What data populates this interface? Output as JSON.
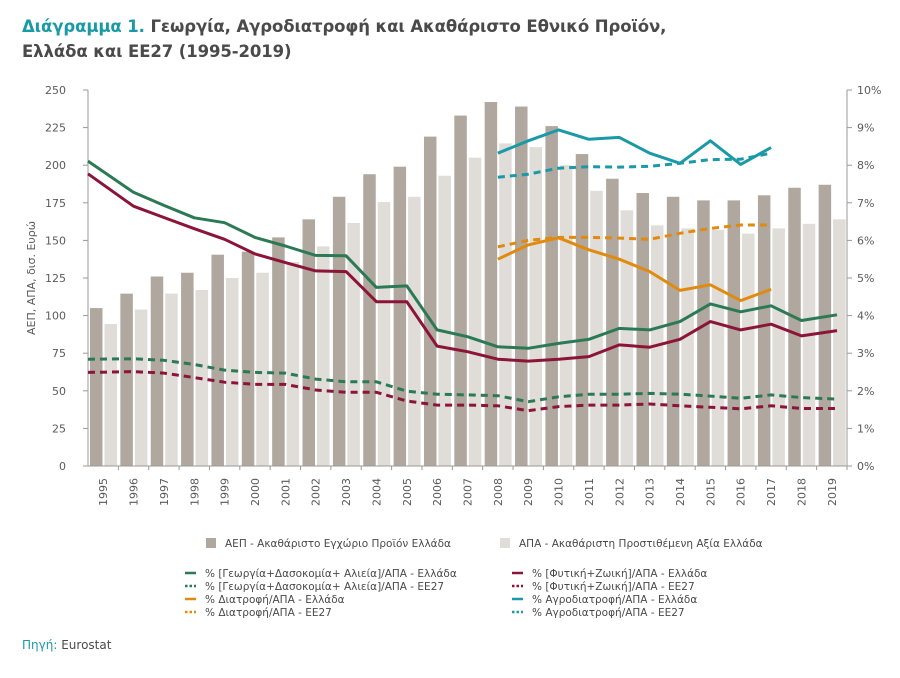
{
  "title": {
    "number": "Διάγραμμα 1.",
    "line1": "Γεωργία, Αγροδιατροφή και Ακαθάριστο Εθνικό Προϊόν,",
    "line2": "Ελλάδα και ΕΕ27 (1995-2019)"
  },
  "source": {
    "label": "Πηγή:",
    "value": "Eurostat"
  },
  "colors": {
    "title_accent": "#1a9aa6",
    "gdp_bar": "#b0a79e",
    "gva_bar": "#e0dcd8",
    "green": "#2b7a55",
    "red": "#8b1538",
    "orange": "#e08a10",
    "teal": "#1a9aa6"
  },
  "chart_data": {
    "type": "bar+line",
    "title": "Διάγραμμα 1. Γεωργία, Αγροδιατροφή και Ακαθάριστο Εθνικό Προϊόν, Ελλάδα και ΕΕ27 (1995-2019)",
    "categories": [
      "1995",
      "1996",
      "1997",
      "1998",
      "1999",
      "2000",
      "2001",
      "2002",
      "2003",
      "2004",
      "2005",
      "2006",
      "2007",
      "2008",
      "2009",
      "2010",
      "2011",
      "2012",
      "2013",
      "2014",
      "2015",
      "2016",
      "2017",
      "2018",
      "2019"
    ],
    "ylabel": "ΑΕΠ, ΑΠΑ, δισ. Ευρώ",
    "ylim": [
      0,
      250
    ],
    "yticks": [
      "0",
      "25",
      "50",
      "75",
      "100",
      "125",
      "150",
      "175",
      "200",
      "225",
      "250"
    ],
    "y2lim": [
      0,
      10
    ],
    "y2ticks": [
      "0%",
      "1%",
      "2%",
      "3%",
      "4%",
      "5%",
      "6%",
      "7%",
      "8%",
      "9%",
      "10%"
    ],
    "grid": false,
    "legend_position": "bottom",
    "bar_series": [
      {
        "name": "ΑΕΠ - Ακαθάριστο Εγχώριο Προϊόν Ελλάδα",
        "axis": "left",
        "values": [
          105,
          114.6,
          126,
          128.5,
          140.5,
          142.5,
          152,
          164,
          179,
          194,
          199,
          219,
          233,
          242,
          239,
          226,
          207.4,
          191,
          181.5,
          179,
          176.6,
          176.6,
          180,
          185,
          187
        ]
      },
      {
        "name": "ΑΠΑ - Ακαθάριστη Προστιθέμενη Αξία Ελλάδα",
        "axis": "left",
        "values": [
          94.4,
          104,
          114.6,
          117,
          125,
          128.5,
          135.6,
          146,
          161.6,
          175.5,
          179,
          193,
          205,
          214.5,
          212,
          200,
          183,
          170,
          160,
          158,
          157,
          154.5,
          158,
          161,
          164
        ]
      }
    ],
    "line_series": [
      {
        "name": "% [Γεωργία+Δασοκομία+ Αλιεία]/ΑΠΑ - Ελλάδα",
        "axis": "right",
        "style": "solid",
        "color": "#2b7a55",
        "values": [
          8.11,
          7.28,
          6.93,
          6.6,
          6.47,
          6.08,
          5.85,
          5.6,
          5.59,
          4.75,
          4.79,
          3.62,
          3.44,
          3.17,
          3.13,
          3.26,
          3.37,
          3.66,
          3.62,
          3.84,
          4.31,
          4.1,
          4.26,
          3.87,
          4.02
        ]
      },
      {
        "name": "% [Γεωργία+Δασοκομία+ Αλιεία]/ΑΠΑ - ΕΕ27",
        "axis": "right",
        "style": "dashed",
        "color": "#2b7a55",
        "values": [
          2.84,
          2.85,
          2.81,
          2.7,
          2.55,
          2.49,
          2.47,
          2.31,
          2.24,
          2.24,
          1.99,
          1.91,
          1.89,
          1.87,
          1.71,
          1.84,
          1.91,
          1.91,
          1.93,
          1.91,
          1.86,
          1.8,
          1.89,
          1.82,
          1.78
        ]
      },
      {
        "name": "% Διατροφή/ΑΠΑ - Ελλάδα",
        "axis": "right",
        "style": "solid",
        "color": "#e08a10",
        "values": [
          null,
          null,
          null,
          null,
          null,
          null,
          null,
          null,
          null,
          null,
          null,
          null,
          null,
          5.5,
          5.88,
          6.07,
          5.75,
          5.5,
          5.17,
          4.67,
          4.82,
          4.4,
          4.7,
          null,
          null
        ]
      },
      {
        "name": "% Διατροφή/ΑΠΑ - ΕΕ27",
        "axis": "right",
        "style": "dashed",
        "color": "#e08a10",
        "values": [
          null,
          null,
          null,
          null,
          null,
          null,
          null,
          null,
          null,
          null,
          null,
          null,
          null,
          5.83,
          6.0,
          6.08,
          6.08,
          6.06,
          6.03,
          6.19,
          6.32,
          6.41,
          6.41,
          null,
          null
        ]
      },
      {
        "name": "% [Φυτική+Ζωική]/ΑΠΑ - Ελλάδα",
        "axis": "right",
        "style": "solid",
        "color": "#8b1538",
        "values": [
          7.77,
          6.91,
          6.61,
          6.31,
          6.03,
          5.64,
          5.41,
          5.19,
          5.17,
          4.37,
          4.37,
          3.19,
          3.04,
          2.84,
          2.79,
          2.84,
          2.91,
          3.22,
          3.16,
          3.37,
          3.84,
          3.62,
          3.77,
          3.46,
          3.6
        ]
      },
      {
        "name": "% [Φυτική+Ζωική]/ΑΠΑ - ΕΕ27",
        "axis": "right",
        "style": "dashed",
        "color": "#8b1538",
        "values": [
          2.49,
          2.51,
          2.47,
          2.35,
          2.23,
          2.17,
          2.17,
          2.02,
          1.96,
          1.96,
          1.73,
          1.62,
          1.62,
          1.6,
          1.47,
          1.58,
          1.62,
          1.62,
          1.65,
          1.6,
          1.56,
          1.52,
          1.6,
          1.53,
          1.53
        ]
      },
      {
        "name": "% Αγροδιατροφή/ΑΠΑ - Ελλάδα",
        "axis": "right",
        "style": "solid",
        "color": "#1a9aa6",
        "values": [
          null,
          null,
          null,
          null,
          null,
          null,
          null,
          null,
          null,
          null,
          null,
          null,
          null,
          8.32,
          8.65,
          8.94,
          8.69,
          8.74,
          8.32,
          8.05,
          8.65,
          8.02,
          8.47,
          null,
          null
        ]
      },
      {
        "name": "% Αγροδιατροφή/ΑΠΑ - ΕΕ27",
        "axis": "right",
        "style": "dashed",
        "color": "#1a9aa6",
        "values": [
          null,
          null,
          null,
          null,
          null,
          null,
          null,
          null,
          null,
          null,
          null,
          null,
          null,
          7.68,
          7.76,
          7.92,
          7.96,
          7.95,
          7.97,
          8.05,
          8.15,
          8.16,
          8.32,
          null,
          null
        ]
      }
    ],
    "legend": {
      "bars": [
        "ΑΕΠ - Ακαθάριστο Εγχώριο Προϊόν Ελλάδα",
        "ΑΠΑ - Ακαθάριστη Προστιθέμενη Αξία Ελλάδα"
      ],
      "lines_left": [
        "% [Γεωργία+Δασοκομία+ Αλιεία]/ΑΠΑ - Ελλάδα",
        "% [Γεωργία+Δασοκομία+ Αλιεία]/ΑΠΑ - ΕΕ27",
        "% Διατροφή/ΑΠΑ - Ελλάδα",
        "% Διατροφή/ΑΠΑ - ΕΕ27"
      ],
      "lines_right": [
        "% [Φυτική+Ζωική]/ΑΠΑ - Ελλάδα",
        "% [Φυτική+Ζωική]/ΑΠΑ - ΕΕ27",
        "% Αγροδιατροφή/ΑΠΑ - Ελλάδα",
        "% Αγροδιατροφή/ΑΠΑ - ΕΕ27"
      ]
    }
  }
}
